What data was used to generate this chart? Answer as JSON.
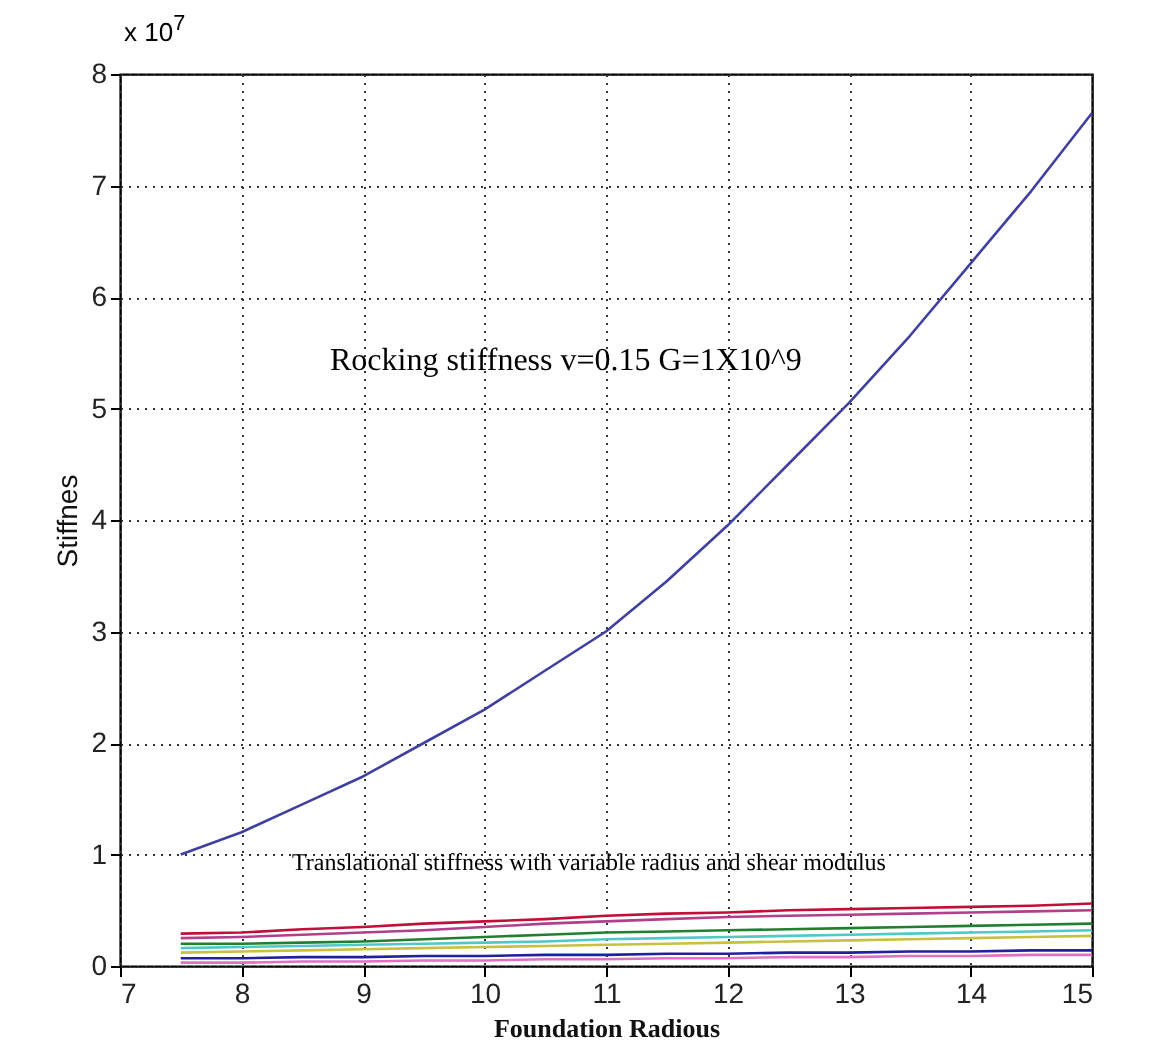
{
  "chart_data": {
    "type": "line",
    "xlabel": "Foundation Radious",
    "ylabel": "Stiffnes",
    "x": [
      7.5,
      8,
      8.5,
      9,
      9.5,
      10,
      10.5,
      11,
      11.5,
      12,
      12.5,
      13,
      13.5,
      14,
      14.5,
      15
    ],
    "xlim": [
      7,
      15
    ],
    "xticks": [
      7,
      8,
      9,
      10,
      11,
      12,
      13,
      14,
      15
    ],
    "ylim": [
      0,
      8
    ],
    "yticks": [
      0,
      1,
      2,
      3,
      4,
      5,
      6,
      7,
      8
    ],
    "grid": true,
    "line_style": "solid",
    "marker": "none",
    "series": [
      {
        "color": "#4040a0",
        "values": [
          1.0,
          1.2,
          1.45,
          1.7,
          2.0,
          2.3,
          2.65,
          3.0,
          3.45,
          3.95,
          4.5,
          5.05,
          5.65,
          6.3,
          6.95,
          7.65
        ]
      },
      {
        "color": "#c0103a",
        "values": [
          0.29,
          0.3,
          0.33,
          0.35,
          0.38,
          0.4,
          0.42,
          0.45,
          0.47,
          0.48,
          0.5,
          0.51,
          0.52,
          0.53,
          0.54,
          0.56
        ]
      },
      {
        "color": "#b0408a",
        "values": [
          0.25,
          0.26,
          0.28,
          0.3,
          0.32,
          0.35,
          0.38,
          0.4,
          0.42,
          0.44,
          0.45,
          0.46,
          0.47,
          0.48,
          0.49,
          0.5
        ]
      },
      {
        "color": "#208030",
        "values": [
          0.2,
          0.2,
          0.21,
          0.22,
          0.24,
          0.26,
          0.28,
          0.3,
          0.31,
          0.32,
          0.33,
          0.34,
          0.35,
          0.36,
          0.37,
          0.38
        ]
      },
      {
        "color": "#50c8c8",
        "values": [
          0.16,
          0.17,
          0.18,
          0.19,
          0.2,
          0.21,
          0.22,
          0.24,
          0.25,
          0.26,
          0.27,
          0.28,
          0.29,
          0.3,
          0.31,
          0.32
        ]
      },
      {
        "color": "#c8c040",
        "values": [
          0.12,
          0.13,
          0.14,
          0.15,
          0.16,
          0.17,
          0.18,
          0.19,
          0.2,
          0.21,
          0.22,
          0.23,
          0.24,
          0.25,
          0.26,
          0.27
        ]
      },
      {
        "color": "#2020a0",
        "values": [
          0.07,
          0.07,
          0.08,
          0.08,
          0.09,
          0.09,
          0.1,
          0.1,
          0.11,
          0.11,
          0.12,
          0.12,
          0.13,
          0.13,
          0.14,
          0.14
        ]
      },
      {
        "color": "#e070c0",
        "values": [
          0.03,
          0.03,
          0.04,
          0.04,
          0.05,
          0.05,
          0.06,
          0.06,
          0.07,
          0.07,
          0.08,
          0.08,
          0.09,
          0.09,
          0.1,
          0.1
        ]
      }
    ],
    "annotations": [
      "x 10$^{7}$",
      "Rocking stiffness v=0.15 G=1X10^9",
      "Translational stiffness with variable radius and shear modulus"
    ]
  }
}
